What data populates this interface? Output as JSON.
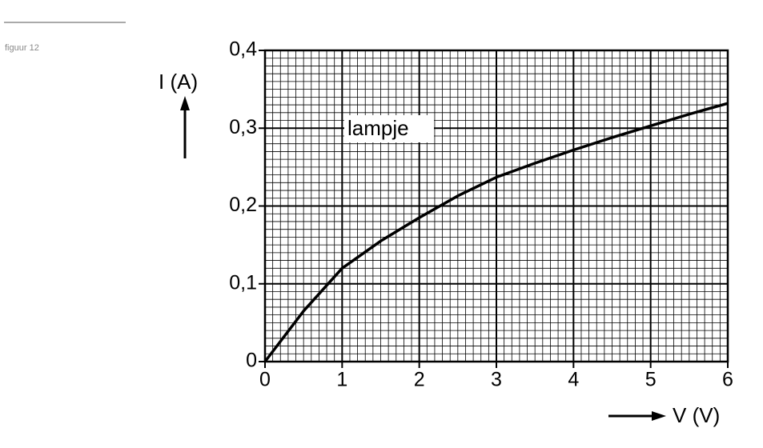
{
  "figure_label": "figuur 12",
  "chart_data": {
    "type": "line",
    "x": [
      0,
      0.5,
      1,
      1.5,
      2,
      2.5,
      3,
      3.5,
      4,
      4.5,
      5,
      5.5,
      6
    ],
    "series": [
      {
        "name": "lampje",
        "color": "#000000",
        "values": [
          0,
          0.065,
          0.12,
          0.155,
          0.185,
          0.213,
          0.237,
          0.255,
          0.272,
          0.288,
          0.303,
          0.318,
          0.332
        ]
      }
    ],
    "xlabel": "V (V)",
    "ylabel": "I (A)",
    "xlim": [
      0,
      6
    ],
    "xticks": [
      0,
      1,
      2,
      3,
      4,
      5,
      6
    ],
    "ylim": [
      0,
      0.4
    ],
    "yticks": [
      0,
      {
        "value": 0.1,
        "label": "0,1"
      },
      {
        "value": 0.2,
        "label": "0,2"
      },
      {
        "value": 0.3,
        "label": "0,3"
      },
      {
        "value": 0.4,
        "label": "0,4"
      }
    ],
    "grid": true,
    "minor_divisions": 10
  }
}
